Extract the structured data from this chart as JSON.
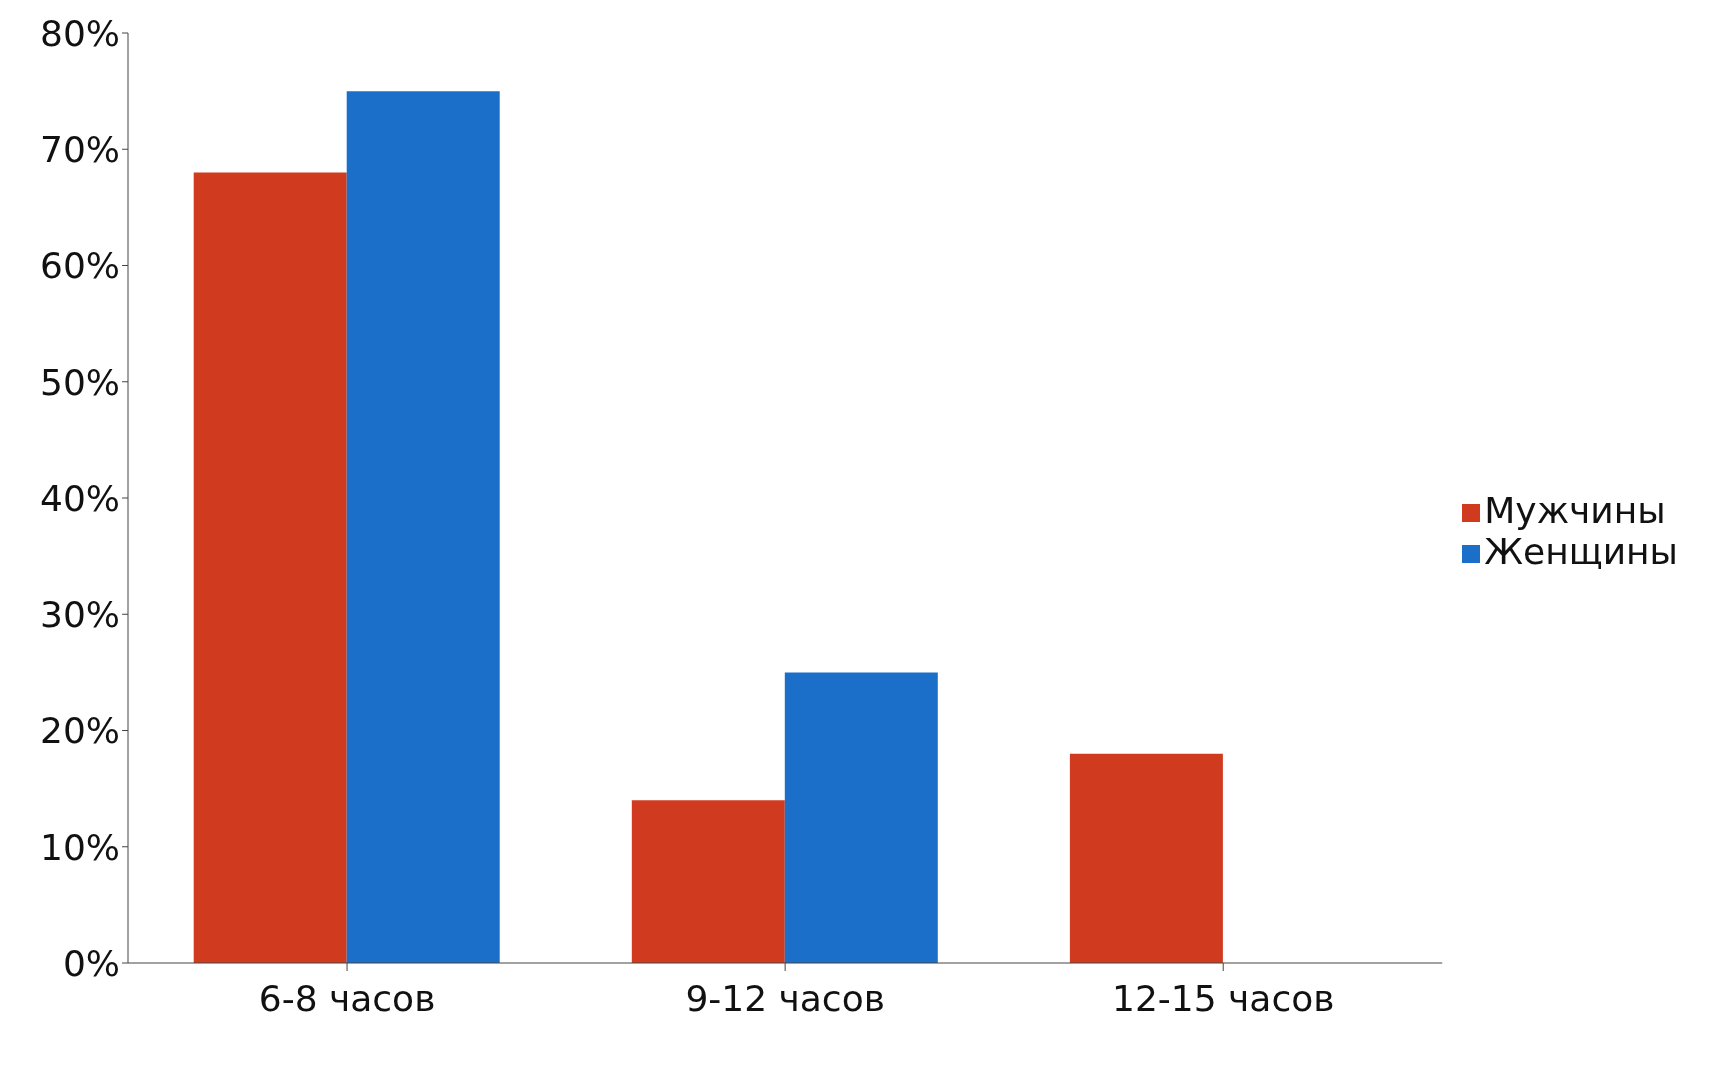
{
  "chart_data": {
    "type": "bar",
    "categories": [
      "6-8 часов",
      "9-12 часов",
      "12-15 часов"
    ],
    "series": [
      {
        "name": "Мужчины",
        "color": "#d03a1f",
        "values": [
          68,
          14,
          18
        ]
      },
      {
        "name": "Женщины",
        "color": "#1b6fc8",
        "values": [
          75,
          25,
          null
        ]
      }
    ],
    "ylim": [
      0,
      80
    ],
    "yticks": [
      {
        "value": 0,
        "label": "0%"
      },
      {
        "value": 10,
        "label": "10%"
      },
      {
        "value": 20,
        "label": "20%"
      },
      {
        "value": 30,
        "label": "30%"
      },
      {
        "value": 40,
        "label": "40%"
      },
      {
        "value": 50,
        "label": "50%"
      },
      {
        "value": 60,
        "label": "60%"
      },
      {
        "value": 70,
        "label": "70%"
      },
      {
        "value": 80,
        "label": "80%"
      }
    ],
    "grid": false,
    "legend": "right"
  }
}
